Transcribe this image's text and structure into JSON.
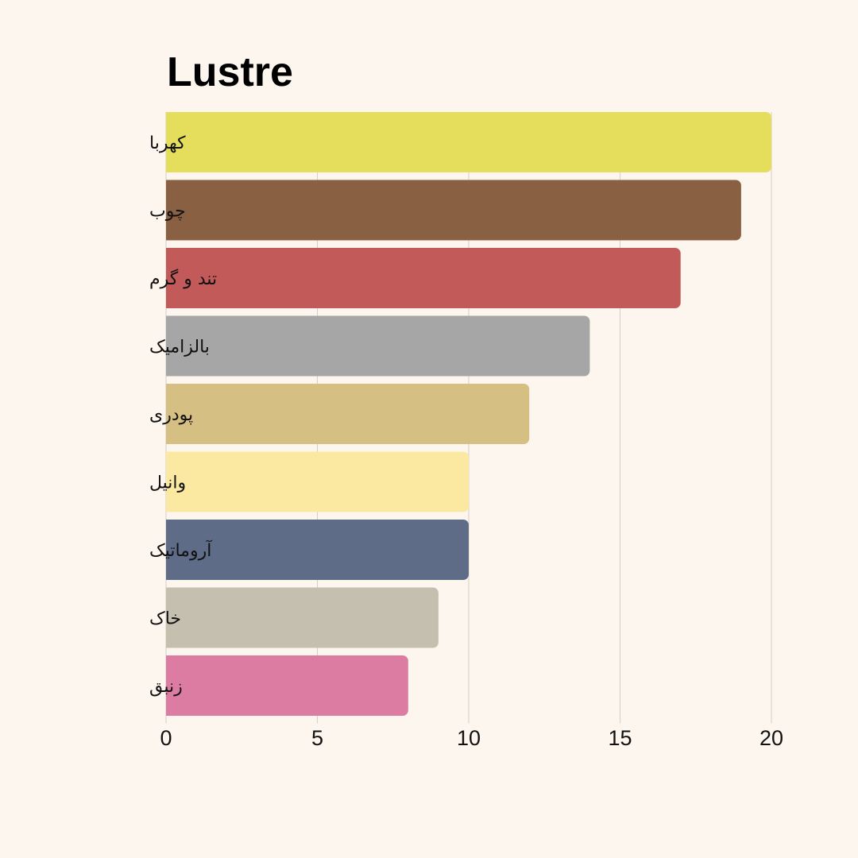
{
  "chart_data": {
    "type": "bar",
    "orientation": "horizontal",
    "title": "Lustre",
    "xlabel": "",
    "ylabel": "",
    "categories": [
      "کهربا",
      "چوب",
      "تند و گرم",
      "بالزامیک",
      "پودری",
      "وانیل",
      "آروماتیک",
      "خاک",
      "زنبق"
    ],
    "values": [
      20,
      19,
      17,
      14,
      12,
      10,
      10,
      9,
      8
    ],
    "colors": [
      "#e5de5c",
      "#8a6043",
      "#c25a5a",
      "#a6a6a6",
      "#d5bf82",
      "#fce9a1",
      "#5e6c88",
      "#c5bfb0",
      "#dc7ca3"
    ],
    "xlim": [
      0,
      20
    ],
    "xticks": [
      0,
      5,
      10,
      15,
      20
    ],
    "grid": true,
    "legend": "none"
  }
}
